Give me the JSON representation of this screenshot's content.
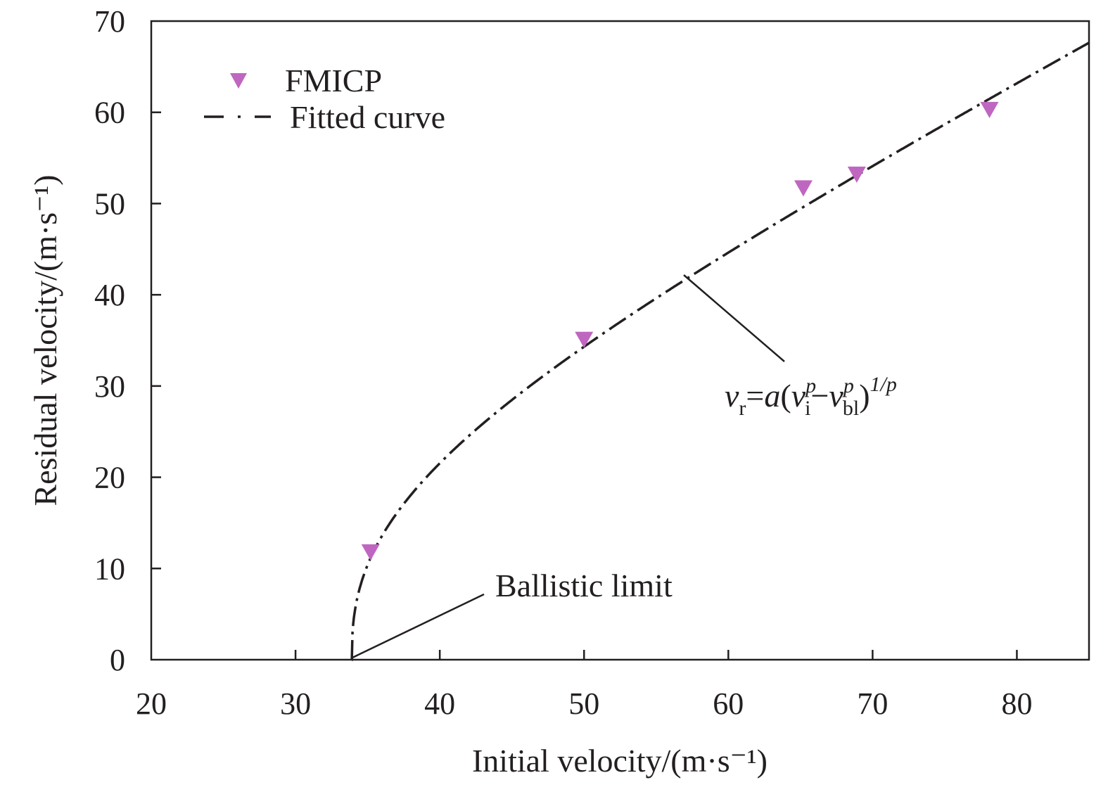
{
  "chart_data": {
    "type": "scatter",
    "xlabel": "Initial velocity/(m·s⁻¹)",
    "ylabel": "Residual velocity/(m·s⁻¹)",
    "xlim": [
      20,
      85
    ],
    "ylim": [
      0,
      70
    ],
    "xticks": [
      20,
      30,
      40,
      50,
      60,
      70,
      80
    ],
    "yticks": [
      0,
      10,
      20,
      30,
      40,
      50,
      60,
      70
    ],
    "grid": false,
    "legend_position": "top-left",
    "series": [
      {
        "name": "FMICP",
        "kind": "marker",
        "marker": "triangle-down",
        "color": "#bf67c0",
        "x": [
          35.2,
          50.0,
          65.2,
          68.9,
          78.1
        ],
        "y": [
          11.8,
          35.1,
          51.7,
          53.2,
          60.3
        ]
      },
      {
        "name": "Fitted curve",
        "kind": "line",
        "style": "dash-dot",
        "color": "#231f20",
        "model": {
          "a": 0.83,
          "p": 2.5,
          "v_bl": 33.9
        }
      }
    ],
    "annotations": {
      "ballistic_limit": "Ballistic limit",
      "formula": {
        "v": "v",
        "r": "r",
        "eq": "=",
        "a": "a",
        "lp": "(",
        "i": "i",
        "p": "p",
        "minus": "−",
        "bl": "bl",
        "rp": ")",
        "exp": "1/p"
      }
    }
  }
}
